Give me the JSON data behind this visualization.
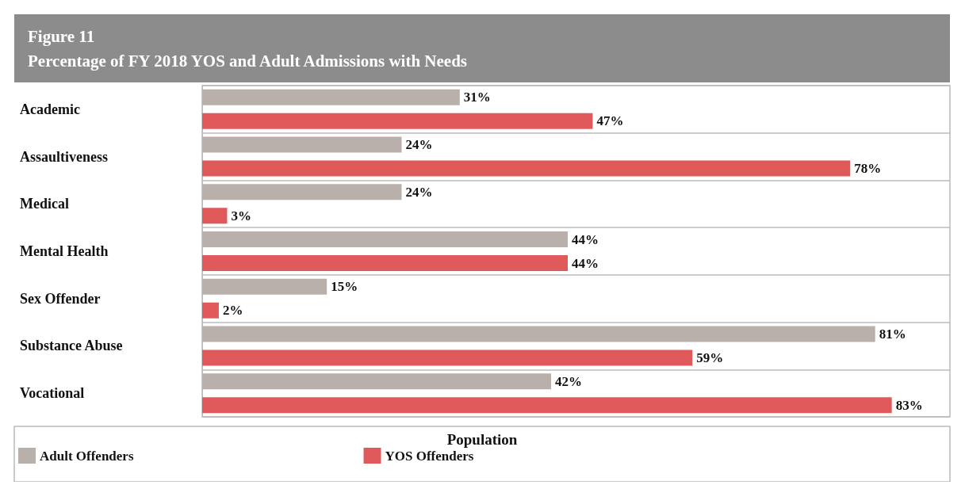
{
  "chart_data": {
    "type": "bar",
    "orientation": "horizontal",
    "title": "Figure 11",
    "subtitle": "Percentage of FY 2018 YOS and Adult Admissions with Needs",
    "categories": [
      "Academic",
      "Assaultiveness",
      "Medical",
      "Mental Health",
      "Sex Offender",
      "Substance Abuse",
      "Vocational"
    ],
    "series": [
      {
        "name": "Adult Offenders",
        "color": "#b9b0ab",
        "values": [
          31,
          24,
          24,
          44,
          15,
          81,
          42
        ],
        "value_labels": [
          "31%",
          "24%",
          "24%",
          "44%",
          "15%",
          "81%",
          "42%"
        ]
      },
      {
        "name": "YOS Offenders",
        "color": "#e0595b",
        "values": [
          47,
          78,
          3,
          44,
          2,
          59,
          83
        ],
        "value_labels": [
          "47%",
          "78%",
          "3%",
          "44%",
          "2%",
          "59%",
          "83%"
        ]
      }
    ],
    "legend": "bottom",
    "legend_title": "Population",
    "grid": true
  }
}
